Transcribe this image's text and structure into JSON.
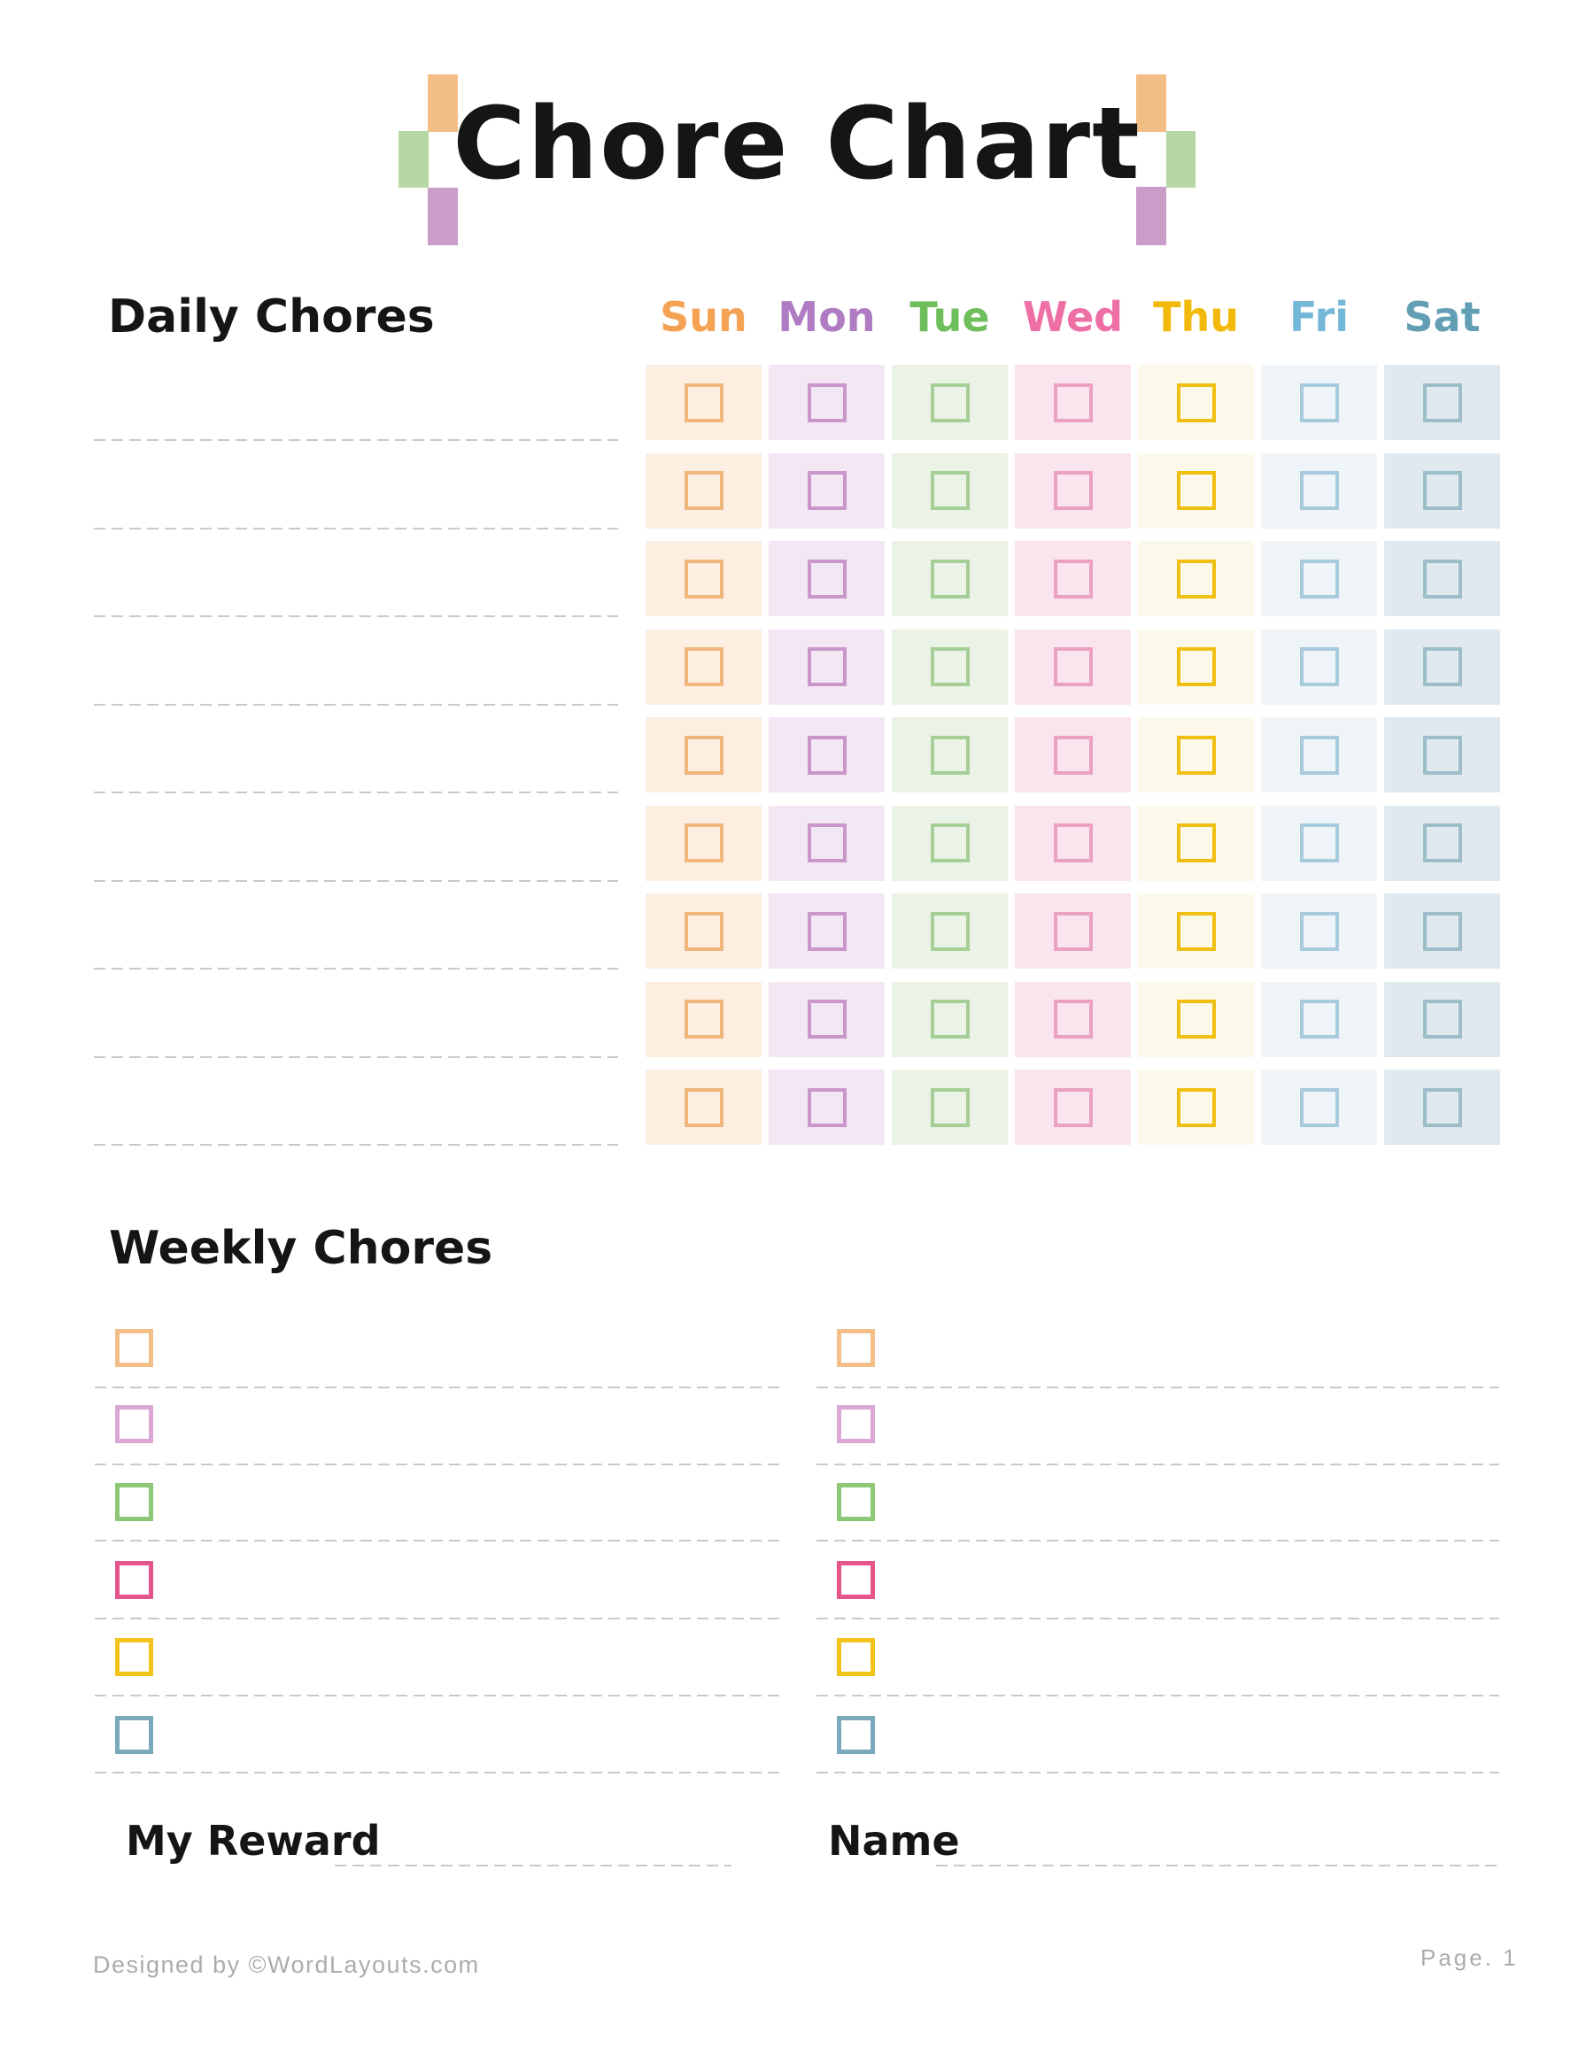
{
  "page": {
    "title": "Chore Chart"
  },
  "decor": {
    "orange": "#F2BE85",
    "green": "#B5D8A5",
    "purple": "#CA9DC9"
  },
  "daily": {
    "title": "Daily Chores",
    "rows": 9,
    "line_color": "#C9C9C9",
    "days": [
      {
        "label": "Sun",
        "label_color": "#F5A254",
        "cell_bg": "#FCEFE2",
        "box_border": "#EFB67D"
      },
      {
        "label": "Mon",
        "label_color": "#AF7BC2",
        "cell_bg": "#F3E7F3",
        "box_border": "#C997C9"
      },
      {
        "label": "Tue",
        "label_color": "#6FBE5C",
        "cell_bg": "#EBF3E6",
        "box_border": "#A6CF97"
      },
      {
        "label": "Wed",
        "label_color": "#EE6FA4",
        "cell_bg": "#FAE4EE",
        "box_border": "#EBA2C2"
      },
      {
        "label": "Thu",
        "label_color": "#F2B90B",
        "cell_bg": "#FDF9EA",
        "box_border": "#EFBF12"
      },
      {
        "label": "Fri",
        "label_color": "#74B7D9",
        "cell_bg": "#EFF4F8",
        "box_border": "#A8CADD"
      },
      {
        "label": "Sat",
        "label_color": "#639FB4",
        "cell_bg": "#E0E9ED",
        "box_border": "#9EBDCA"
      }
    ]
  },
  "weekly": {
    "title": "Weekly Chores",
    "columns": 2,
    "rows_per_column": 6,
    "box_colors": [
      "#F2BE89",
      "#DBA7D6",
      "#8CC878",
      "#E5548A",
      "#F2C31A",
      "#79A9BA"
    ]
  },
  "bottom": {
    "reward_label": "My Reward",
    "name_label": "Name"
  },
  "footer": {
    "credit": "Designed by ©WordLayouts.com",
    "page": "Page. 1"
  }
}
